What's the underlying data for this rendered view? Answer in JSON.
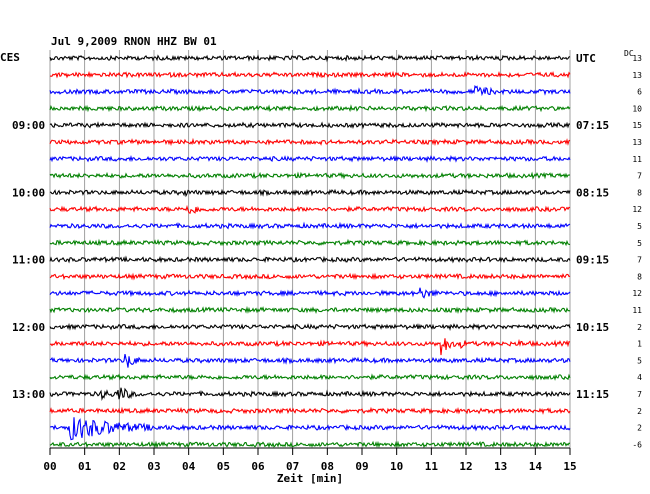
{
  "chart_data": {
    "type": "line",
    "title": "Jul 9,2009   RNON HHZ BW 01",
    "left_axis_label": "CES",
    "right_axis_label": "UTC",
    "dc_label": "DC",
    "xlabel": "Zeit [min]",
    "xlim": [
      0,
      15
    ],
    "x_ticks": [
      "00",
      "01",
      "02",
      "03",
      "04",
      "05",
      "06",
      "07",
      "08",
      "09",
      "10",
      "11",
      "12",
      "13",
      "14",
      "15"
    ],
    "left_time_labels": [
      {
        "row": 4,
        "text": "09:00"
      },
      {
        "row": 8,
        "text": "10:00"
      },
      {
        "row": 12,
        "text": "11:00"
      },
      {
        "row": 16,
        "text": "12:00"
      },
      {
        "row": 20,
        "text": "13:00"
      }
    ],
    "right_time_labels": [
      {
        "row": 0,
        "text": "UTC"
      },
      {
        "row": 4,
        "text": "07:15"
      },
      {
        "row": 8,
        "text": "08:15"
      },
      {
        "row": 12,
        "text": "09:15"
      },
      {
        "row": 16,
        "text": "10:15"
      },
      {
        "row": 20,
        "text": "11:15"
      }
    ],
    "trace_colors": [
      "#000000",
      "#ff0000",
      "#0000ff",
      "#008000"
    ],
    "dc_values": [
      "13",
      "13",
      "6",
      "10",
      "15",
      "13",
      "11",
      "7",
      "8",
      "12",
      "5",
      "5",
      "7",
      "8",
      "12",
      "11",
      "2",
      "1",
      "5",
      "4",
      "7",
      "2",
      "2",
      "-6"
    ],
    "events": [
      {
        "row": 2,
        "minute": 12.3,
        "amplitude": 6,
        "duration": 0.6
      },
      {
        "row": 9,
        "minute": 4.0,
        "amplitude": 6,
        "duration": 0.5
      },
      {
        "row": 8,
        "minute": 3.9,
        "amplitude": 4,
        "duration": 0.2
      },
      {
        "row": 14,
        "minute": 10.7,
        "amplitude": 6,
        "duration": 0.5
      },
      {
        "row": 17,
        "minute": 11.3,
        "amplitude": 12,
        "duration": 0.25
      },
      {
        "row": 17,
        "minute": 11.9,
        "amplitude": 5,
        "duration": 0.15
      },
      {
        "row": 17,
        "minute": 13.5,
        "amplitude": 4,
        "duration": 0.3
      },
      {
        "row": 18,
        "minute": 2.2,
        "amplitude": 9,
        "duration": 0.3
      },
      {
        "row": 20,
        "minute": 1.5,
        "amplitude": 5,
        "duration": 0.6
      },
      {
        "row": 20,
        "minute": 2.0,
        "amplitude": 8,
        "duration": 0.4
      },
      {
        "row": 22,
        "minute": 0.6,
        "amplitude": 13,
        "duration": 1.6
      }
    ],
    "grid": true,
    "rows": 24
  }
}
